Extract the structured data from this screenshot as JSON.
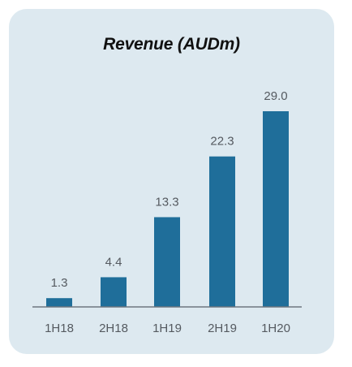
{
  "chart_data": {
    "type": "bar",
    "title": "Revenue (AUDm)",
    "categories": [
      "1H18",
      "2H18",
      "1H19",
      "2H19",
      "1H20"
    ],
    "values": [
      1.3,
      4.4,
      13.3,
      22.3,
      29.0
    ],
    "value_labels": [
      "1.3",
      "4.4",
      "13.3",
      "22.3",
      "29.0"
    ],
    "xlabel": "",
    "ylabel": "",
    "ylim": [
      0,
      29.0
    ],
    "grid": false,
    "legend": "none",
    "colors": {
      "bar": "#1f6e9a",
      "axis": "#6f7780",
      "background": "#dde9f0"
    }
  }
}
